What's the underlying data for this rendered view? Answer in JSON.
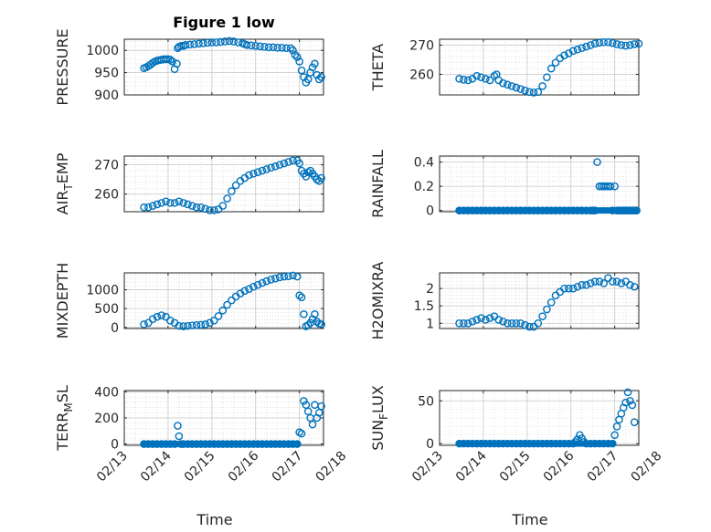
{
  "figure": {
    "title": "Figure 1 low"
  },
  "colors": {
    "marker": "#0072BD",
    "axes": "#262626",
    "grid": "#c8c8c8",
    "minor_grid": "#d2d2d2"
  },
  "chart_data": [
    {
      "type": "scatter",
      "title": "Figure 1 low",
      "ylabel": "PRESSURE",
      "ylabel_parts": [
        "PRESSURE"
      ],
      "xlabel": "",
      "ylim": [
        900,
        1025
      ],
      "yticks": [
        900,
        950,
        1000
      ],
      "yticklabels": [
        "900",
        "950",
        "1000"
      ],
      "xlim": [
        "02/13",
        "02/17 12h"
      ],
      "x_unit": "days from 02/13 00:00",
      "xtick_labels": [],
      "grid": true,
      "minor_grid": true,
      "x": [
        0.45,
        0.5,
        0.55,
        0.6,
        0.65,
        0.7,
        0.75,
        0.8,
        0.85,
        0.9,
        0.95,
        1.0,
        1.05,
        1.1,
        1.15,
        1.2,
        1.22,
        1.25,
        1.3,
        1.35,
        1.4,
        1.5,
        1.6,
        1.7,
        1.8,
        1.9,
        2.0,
        2.1,
        2.2,
        2.3,
        2.4,
        2.5,
        2.6,
        2.7,
        2.75,
        2.8,
        2.9,
        3.0,
        3.1,
        3.2,
        3.3,
        3.4,
        3.5,
        3.6,
        3.7,
        3.8,
        3.85,
        3.9,
        3.95,
        4.0,
        4.05,
        4.1,
        4.15,
        4.2,
        4.25,
        4.3,
        4.35,
        4.4,
        4.45,
        4.5
      ],
      "y": [
        960,
        962,
        965,
        968,
        972,
        975,
        977,
        978,
        979,
        980,
        980,
        980,
        979,
        975,
        958,
        970,
        1005,
        1008,
        1010,
        1010,
        1012,
        1013,
        1014,
        1015,
        1016,
        1017,
        1018,
        1018,
        1019,
        1020,
        1021,
        1020,
        1018,
        1016,
        1014,
        1012,
        1011,
        1010,
        1009,
        1008,
        1007,
        1007,
        1006,
        1006,
        1005,
        1005,
        1000,
        990,
        985,
        975,
        955,
        940,
        928,
        935,
        950,
        962,
        970,
        945,
        935,
        940
      ]
    },
    {
      "type": "scatter",
      "ylabel": "THETA",
      "ylabel_parts": [
        "THETA"
      ],
      "xlabel": "",
      "ylim": [
        253,
        272
      ],
      "yticks": [
        260,
        270
      ],
      "yticklabels": [
        "260",
        "270"
      ],
      "xlim": [
        "02/13",
        "02/17 12h"
      ],
      "xtick_labels": [],
      "grid": true,
      "minor_grid": true,
      "x": [
        0.45,
        0.55,
        0.65,
        0.75,
        0.85,
        0.95,
        1.05,
        1.15,
        1.25,
        1.3,
        1.35,
        1.45,
        1.55,
        1.65,
        1.75,
        1.85,
        1.95,
        2.05,
        2.15,
        2.25,
        2.35,
        2.45,
        2.55,
        2.65,
        2.75,
        2.85,
        2.95,
        3.05,
        3.15,
        3.25,
        3.35,
        3.45,
        3.55,
        3.65,
        3.75,
        3.85,
        3.95,
        4.05,
        4.15,
        4.25,
        4.35,
        4.45,
        4.55
      ],
      "y": [
        258.5,
        258.2,
        258,
        258.5,
        259.5,
        259,
        258.5,
        258,
        259.5,
        260,
        258,
        257,
        256.5,
        256,
        255.5,
        255,
        254.5,
        254,
        253.8,
        254,
        256,
        259,
        262,
        264,
        265.5,
        266.5,
        267.2,
        268,
        268.5,
        269,
        269.5,
        270,
        270.5,
        270.8,
        271,
        271,
        270.7,
        270.3,
        270,
        269.8,
        270,
        270.3,
        270.5
      ]
    },
    {
      "type": "scatter",
      "ylabel": "AIR_TEMP",
      "ylabel_parts": [
        "AIR",
        "T",
        "EMP"
      ],
      "xlabel": "",
      "ylim": [
        254,
        273
      ],
      "yticks": [
        260,
        270
      ],
      "yticklabels": [
        "260",
        "270"
      ],
      "xlim": [
        "02/13",
        "02/17 12h"
      ],
      "xtick_labels": [],
      "grid": true,
      "minor_grid": true,
      "x": [
        0.45,
        0.55,
        0.65,
        0.75,
        0.85,
        0.95,
        1.05,
        1.15,
        1.25,
        1.35,
        1.45,
        1.55,
        1.65,
        1.75,
        1.85,
        1.95,
        2.05,
        2.15,
        2.25,
        2.35,
        2.45,
        2.55,
        2.65,
        2.75,
        2.85,
        2.95,
        3.05,
        3.15,
        3.25,
        3.35,
        3.45,
        3.55,
        3.65,
        3.75,
        3.85,
        3.95,
        4.0,
        4.05,
        4.1,
        4.15,
        4.2,
        4.25,
        4.3,
        4.35,
        4.4,
        4.45,
        4.5
      ],
      "y": [
        255.5,
        255.5,
        256,
        256.5,
        257,
        257.5,
        257,
        257,
        257.5,
        257,
        256.5,
        256,
        255.5,
        255.5,
        255,
        254.5,
        254.5,
        254.8,
        256,
        258.5,
        261,
        263,
        264.5,
        265.5,
        266.5,
        267,
        267.5,
        268,
        268.5,
        269,
        269.5,
        270,
        270.5,
        271,
        271.5,
        271.5,
        270.5,
        268,
        267,
        266,
        267.5,
        268,
        267,
        266,
        265,
        264.5,
        265.5
      ]
    },
    {
      "type": "scatter",
      "ylabel": "RAINFALL",
      "ylabel_parts": [
        "RAINFALL"
      ],
      "xlabel": "",
      "ylim": [
        -0.01,
        0.45
      ],
      "yticks": [
        0,
        0.2,
        0.4
      ],
      "yticklabels": [
        "0",
        "0.2",
        "0.4"
      ],
      "xlim": [
        "02/13",
        "02/17 12h"
      ],
      "xtick_labels": [],
      "grid": true,
      "minor_grid": true,
      "x": [
        0.45,
        0.55,
        0.65,
        0.75,
        0.85,
        0.95,
        1.05,
        1.15,
        1.25,
        1.35,
        1.45,
        1.55,
        1.65,
        1.75,
        1.85,
        1.95,
        2.05,
        2.15,
        2.25,
        2.35,
        2.45,
        2.55,
        2.65,
        2.75,
        2.85,
        2.95,
        3.05,
        3.15,
        3.25,
        3.35,
        3.45,
        3.5,
        3.55,
        3.6,
        3.65,
        3.7,
        3.75,
        3.8,
        3.85,
        3.9,
        3.95,
        4.0,
        4.05,
        4.1,
        4.15,
        4.2,
        4.25,
        4.3,
        4.35,
        4.4,
        4.45,
        4.5
      ],
      "y": [
        0,
        0,
        0,
        0,
        0,
        0,
        0,
        0,
        0,
        0,
        0,
        0,
        0,
        0,
        0,
        0,
        0,
        0,
        0,
        0,
        0,
        0,
        0,
        0,
        0,
        0,
        0,
        0,
        0,
        0,
        0,
        0,
        0,
        0.4,
        0.2,
        0.2,
        0.2,
        0.2,
        0.2,
        0.2,
        0,
        0.2,
        0,
        0,
        0,
        0,
        0,
        0,
        0,
        0,
        0,
        0
      ]
    },
    {
      "type": "scatter",
      "ylabel": "MIXDEPTH",
      "ylabel_parts": [
        "MIXDEPTH"
      ],
      "xlabel": "",
      "ylim": [
        -30,
        1450
      ],
      "yticks": [
        0,
        500,
        1000
      ],
      "yticklabels": [
        "0",
        "500",
        "1000"
      ],
      "xlim": [
        "02/13",
        "02/17 12h"
      ],
      "xtick_labels": [],
      "grid": true,
      "minor_grid": true,
      "x": [
        0.45,
        0.55,
        0.65,
        0.75,
        0.85,
        0.95,
        1.05,
        1.15,
        1.25,
        1.35,
        1.45,
        1.55,
        1.65,
        1.75,
        1.85,
        1.95,
        2.05,
        2.15,
        2.25,
        2.35,
        2.45,
        2.55,
        2.65,
        2.75,
        2.85,
        2.95,
        3.05,
        3.15,
        3.25,
        3.35,
        3.45,
        3.55,
        3.65,
        3.75,
        3.85,
        3.95,
        4.0,
        4.05,
        4.1,
        4.15,
        4.2,
        4.25,
        4.3,
        4.35,
        4.4,
        4.45,
        4.5
      ],
      "y": [
        80,
        120,
        220,
        280,
        320,
        280,
        180,
        120,
        40,
        30,
        40,
        50,
        60,
        70,
        80,
        120,
        180,
        300,
        450,
        600,
        720,
        820,
        900,
        970,
        1020,
        1080,
        1130,
        1180,
        1230,
        1270,
        1300,
        1330,
        1350,
        1360,
        1380,
        1350,
        850,
        800,
        350,
        30,
        60,
        120,
        220,
        350,
        150,
        100,
        80
      ]
    },
    {
      "type": "scatter",
      "ylabel": "H2OMIXRA",
      "ylabel_parts": [
        "H2OMIXRA"
      ],
      "xlabel": "",
      "ylim": [
        0.85,
        2.45
      ],
      "yticks": [
        1,
        1.5,
        2
      ],
      "yticklabels": [
        "1",
        "1.5",
        "2"
      ],
      "xlim": [
        "02/13",
        "02/17 12h"
      ],
      "xtick_labels": [],
      "grid": true,
      "minor_grid": true,
      "x": [
        0.45,
        0.55,
        0.65,
        0.75,
        0.85,
        0.95,
        1.05,
        1.15,
        1.25,
        1.35,
        1.45,
        1.55,
        1.65,
        1.75,
        1.85,
        1.95,
        2.05,
        2.15,
        2.25,
        2.35,
        2.45,
        2.55,
        2.65,
        2.75,
        2.85,
        2.95,
        3.05,
        3.15,
        3.25,
        3.35,
        3.45,
        3.55,
        3.65,
        3.75,
        3.85,
        3.95,
        4.05,
        4.15,
        4.25,
        4.35,
        4.45
      ],
      "y": [
        1,
        1,
        1,
        1.05,
        1.1,
        1.15,
        1.1,
        1.15,
        1.2,
        1.1,
        1.05,
        1.0,
        1.0,
        1.0,
        1.0,
        0.95,
        0.9,
        0.9,
        1.0,
        1.2,
        1.4,
        1.6,
        1.8,
        1.9,
        2.0,
        2.0,
        2.0,
        2.05,
        2.1,
        2.1,
        2.15,
        2.2,
        2.2,
        2.15,
        2.3,
        2.2,
        2.2,
        2.15,
        2.2,
        2.1,
        2.05
      ]
    },
    {
      "type": "scatter",
      "ylabel": "TERR_MSL",
      "ylabel_parts": [
        "TERR",
        "M",
        "SL"
      ],
      "xlabel": "Time",
      "ylim": [
        -10,
        410
      ],
      "yticks": [
        0,
        200,
        400
      ],
      "yticklabels": [
        "0",
        "200",
        "400"
      ],
      "xlim": [
        "02/13",
        "02/17 12h"
      ],
      "xtick_labels": [
        "02/13",
        "02/14",
        "02/15",
        "02/16",
        "02/17",
        "02/18"
      ],
      "grid": true,
      "minor_grid": true,
      "x": [
        0.45,
        0.55,
        0.65,
        0.75,
        0.85,
        0.95,
        1.05,
        1.15,
        1.22,
        1.25,
        1.3,
        1.35,
        1.45,
        1.55,
        1.65,
        1.75,
        1.85,
        1.95,
        2.05,
        2.15,
        2.25,
        2.35,
        2.45,
        2.55,
        2.65,
        2.75,
        2.85,
        2.95,
        3.05,
        3.15,
        3.25,
        3.35,
        3.45,
        3.55,
        3.65,
        3.75,
        3.85,
        3.95,
        4.0,
        4.05,
        4.1,
        4.15,
        4.2,
        4.25,
        4.3,
        4.35,
        4.4,
        4.45,
        4.5
      ],
      "y": [
        0,
        0,
        0,
        0,
        0,
        0,
        0,
        0,
        140,
        60,
        0,
        0,
        0,
        0,
        0,
        0,
        0,
        0,
        0,
        0,
        0,
        0,
        0,
        0,
        0,
        0,
        0,
        0,
        0,
        0,
        0,
        0,
        0,
        0,
        0,
        0,
        0,
        0,
        90,
        80,
        330,
        300,
        250,
        200,
        150,
        300,
        200,
        240,
        290
      ]
    },
    {
      "type": "scatter",
      "ylabel": "SUN_FLUX",
      "ylabel_parts": [
        "SUN",
        "F",
        "LUX"
      ],
      "xlabel": "Time",
      "ylim": [
        -2,
        62
      ],
      "yticks": [
        0,
        50
      ],
      "yticklabels": [
        "0",
        "50"
      ],
      "xlim": [
        "02/13",
        "02/17 12h"
      ],
      "xtick_labels": [
        "02/13",
        "02/14",
        "02/15",
        "02/16",
        "02/17",
        "02/18"
      ],
      "grid": true,
      "minor_grid": true,
      "x": [
        0.45,
        0.55,
        0.65,
        0.75,
        0.85,
        0.95,
        1.05,
        1.15,
        1.25,
        1.35,
        1.45,
        1.55,
        1.65,
        1.75,
        1.85,
        1.95,
        2.05,
        2.15,
        2.25,
        2.35,
        2.45,
        2.55,
        2.65,
        2.75,
        2.85,
        2.95,
        3.05,
        3.1,
        3.15,
        3.2,
        3.25,
        3.3,
        3.35,
        3.45,
        3.55,
        3.65,
        3.75,
        3.85,
        3.95,
        4.0,
        4.05,
        4.1,
        4.15,
        4.2,
        4.25,
        4.3,
        4.35,
        4.4,
        4.45
      ],
      "y": [
        0,
        0,
        0,
        0,
        0,
        0,
        0,
        0,
        0,
        0,
        0,
        0,
        0,
        0,
        0,
        0,
        0,
        0,
        0,
        0,
        0,
        0,
        0,
        0,
        0,
        0,
        0,
        2,
        5,
        10,
        6,
        2,
        0,
        0,
        0,
        0,
        0,
        0,
        0,
        10,
        20,
        28,
        35,
        42,
        48,
        60,
        50,
        45,
        25
      ]
    }
  ]
}
